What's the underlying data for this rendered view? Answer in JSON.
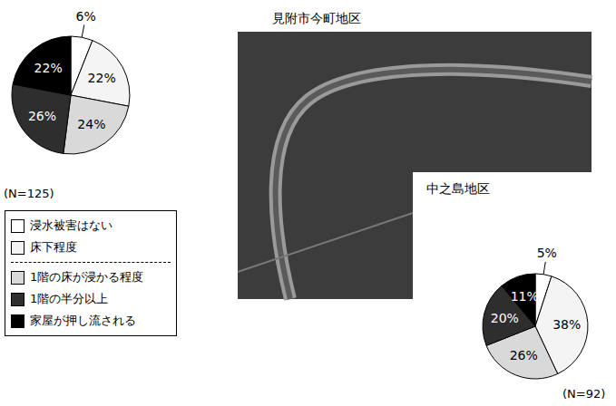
{
  "chart_data": [
    {
      "type": "pie",
      "title": "見附市今町地区",
      "subtitle": "(N=125)",
      "categories": [
        "浸水被害はない",
        "床下程度",
        "1階の床が浸かる程度",
        "1階の半分以上",
        "家屋が押し流される"
      ],
      "values": [
        6,
        22,
        24,
        26,
        22
      ],
      "value_labels": [
        "6%",
        "22%",
        "24%",
        "26%",
        "22%"
      ],
      "colors": [
        "#ffffff",
        "#f4f4f4",
        "#d9d9d9",
        "#2e2e2e",
        "#000000"
      ],
      "data_labels": true,
      "legend": "left"
    },
    {
      "type": "pie",
      "title": "中之島地区",
      "subtitle": "(N=92)",
      "categories": [
        "浸水被害はない",
        "床下程度",
        "1階の床が浸かる程度",
        "1階の半分以上",
        "家屋が押し流される"
      ],
      "values": [
        5,
        38,
        26,
        20,
        11
      ],
      "value_labels": [
        "5%",
        "38%",
        "26%",
        "20%",
        "11%"
      ],
      "colors": [
        "#ffffff",
        "#f4f4f4",
        "#d9d9d9",
        "#2e2e2e",
        "#000000"
      ],
      "data_labels": true
    }
  ]
}
